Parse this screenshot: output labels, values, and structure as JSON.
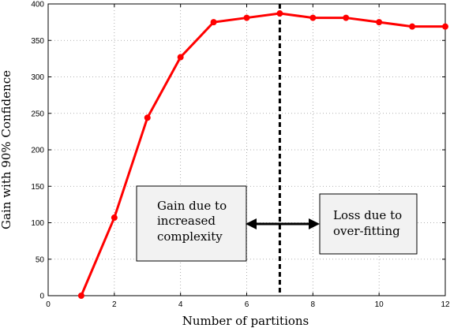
{
  "chart_data": {
    "type": "line",
    "xlabel": "Number of partitions",
    "ylabel": "Gain with 90% Confidence",
    "xlim": [
      0,
      12
    ],
    "ylim": [
      0,
      400
    ],
    "xticks": [
      0,
      2,
      4,
      6,
      8,
      10,
      12
    ],
    "yticks": [
      0,
      50,
      100,
      150,
      200,
      250,
      300,
      350,
      400
    ],
    "grid": true,
    "series": [
      {
        "color": "#ff0000",
        "x": [
          1,
          2,
          3,
          4,
          5,
          6,
          7,
          8,
          9,
          10,
          11,
          12
        ],
        "y": [
          0,
          107,
          244,
          327,
          375,
          381,
          387,
          381,
          381,
          375,
          369,
          369
        ]
      }
    ],
    "vline": {
      "x": 7,
      "style": "dashed",
      "color": "#000000"
    },
    "annotations": [
      {
        "lines": [
          "Gain due to",
          "increased",
          "complexity"
        ]
      },
      {
        "lines": [
          "Loss due to",
          "over-fitting"
        ]
      }
    ]
  }
}
